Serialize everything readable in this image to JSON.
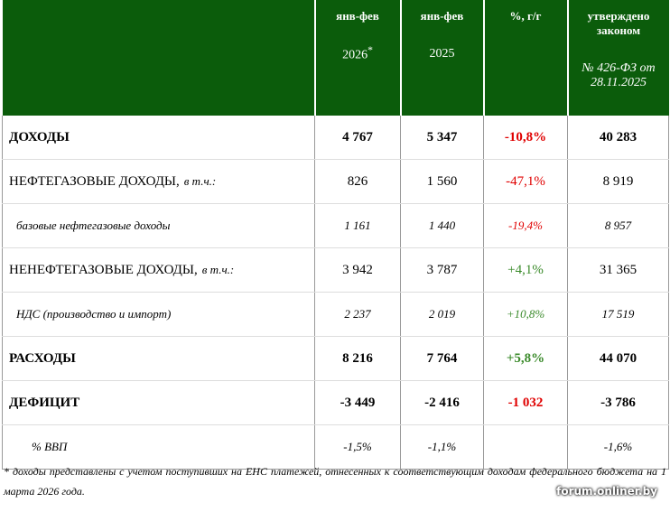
{
  "header": {
    "columns": [
      {
        "line1": "янв-фев",
        "line2": "2026",
        "mark": "*"
      },
      {
        "line1": "янв-фев",
        "line2": "2025"
      },
      {
        "line1": "%, г/г"
      },
      {
        "line1": "утверждено законом",
        "line2": "№ 426-ФЗ от 28.11.2025"
      }
    ]
  },
  "table": {
    "rows": [
      {
        "style": "bold",
        "label": "ДОХОДЫ",
        "values": [
          "4 767",
          "5 347",
          "-10,8%",
          "40 283"
        ],
        "pct_color": "#e00000"
      },
      {
        "style": "normal",
        "label": "НЕФТЕГАЗОВЫЕ ДОХОДЫ,",
        "note": "в т.ч.:",
        "values": [
          "826",
          "1 560",
          "-47,1%",
          "8 919"
        ],
        "pct_color": "#e00000"
      },
      {
        "style": "italic",
        "label": "базовые нефтегазовые доходы",
        "values": [
          "1 161",
          "1 440",
          "-19,4%",
          "8 957"
        ],
        "pct_color": "#e00000"
      },
      {
        "style": "normal",
        "label": "НЕНЕФТЕГАЗОВЫЕ ДОХОДЫ,",
        "note": "в т.ч.:",
        "values": [
          "3 942",
          "3 787",
          "+4,1%",
          "31 365"
        ],
        "pct_color": "#3a8a2a"
      },
      {
        "style": "italic",
        "label": "НДС (производство и импорт)",
        "values": [
          "2 237",
          "2 019",
          "+10,8%",
          "17 519"
        ],
        "pct_color": "#3a8a2a"
      },
      {
        "style": "bold",
        "label": "РАСХОДЫ",
        "values": [
          "8 216",
          "7 764",
          "+5,8%",
          "44 070"
        ],
        "pct_color": "#3a8a2a"
      },
      {
        "style": "bold",
        "label": "ДЕФИЦИТ",
        "values": [
          "-3 449",
          "-2 416",
          "-1 032",
          "-3 786"
        ],
        "pct_color": "#e00000"
      },
      {
        "style": "italic",
        "label": "% ВВП",
        "values": [
          "-1,5%",
          "-1,1%",
          null,
          "-1,6%"
        ],
        "pct_color": "#e00000"
      }
    ]
  },
  "footnote": "* доходы представлены с учетом поступивших на ЕНС платежей, отнесенных к соответствующим доходам федерального бюджета на 1 марта 2026 года.",
  "watermark": "forum.onliner.by"
}
